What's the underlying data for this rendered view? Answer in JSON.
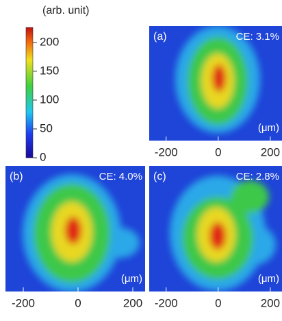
{
  "colorbar": {
    "label": "(arb. unit)",
    "lim": [
      0,
      226
    ],
    "ticks": [
      0,
      50,
      100,
      150,
      200
    ]
  },
  "panels": [
    {
      "label": "(a)",
      "ce": "CE: 3.1%",
      "unit": "(μm)",
      "xlim": [
        -265,
        245
      ],
      "xticks": [
        -200,
        0,
        200
      ]
    },
    {
      "label": "(b)",
      "ce": "CE: 4.0%",
      "unit": "(μm)",
      "xlim": [
        -265,
        245
      ],
      "xticks": [
        -200,
        0,
        200
      ]
    },
    {
      "label": "(c)",
      "ce": "CE: 2.8%",
      "unit": "(μm)",
      "xlim": [
        -265,
        245
      ],
      "xticks": [
        -200,
        0,
        200
      ]
    }
  ]
}
